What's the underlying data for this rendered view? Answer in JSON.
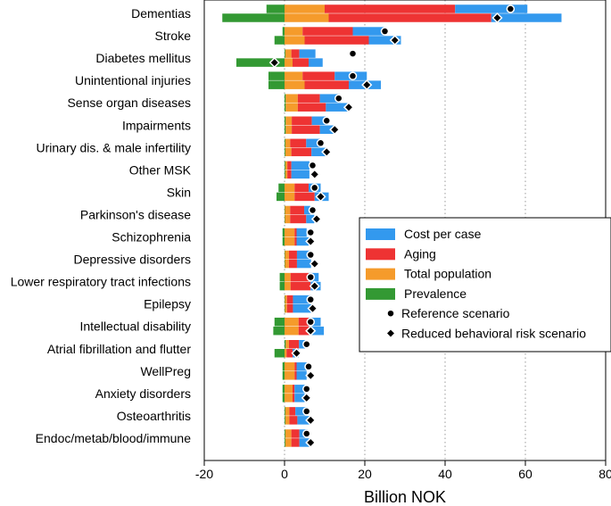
{
  "chart_data": {
    "type": "bar",
    "orientation": "horizontal",
    "stacked": true,
    "xlabel": "Billion NOK",
    "xlim": [
      -20,
      80
    ],
    "xticks": [
      -20,
      0,
      20,
      40,
      60,
      80
    ],
    "grid": "vertical-dotted",
    "legend_position": "right-center",
    "categories": [
      "Dementias",
      "Stroke",
      "Diabetes mellitus",
      "Unintentional injuries",
      "Sense organ diseases",
      "Impairments",
      "Urinary dis. & male infertility",
      "Other MSK",
      "Skin",
      "Parkinson's disease",
      "Schizophrenia",
      "Depressive disorders",
      "Lower respiratory tract infections",
      "Epilepsy",
      "Intellectual disability",
      "Atrial fibrillation and flutter",
      "WellPreg",
      "Anxiety disorders",
      "Osteoarthritis",
      "Endoc/metab/blood/immune"
    ],
    "legend": [
      {
        "key": "cost",
        "label": "Cost per case",
        "color": "#3399ee",
        "marker": "bar"
      },
      {
        "key": "aging",
        "label": "Aging",
        "color": "#ee3333",
        "marker": "bar"
      },
      {
        "key": "pop",
        "label": "Total population",
        "color": "#f59b2b",
        "marker": "bar"
      },
      {
        "key": "prev",
        "label": "Prevalence",
        "color": "#339933",
        "marker": "bar"
      },
      {
        "key": "ref",
        "label": "Reference scenario",
        "marker": "circle"
      },
      {
        "key": "red",
        "label": "Reduced behavioral risk scenario",
        "marker": "diamond"
      }
    ],
    "scenarios": {
      "reference": {
        "prevalence": [
          -4.5,
          -0.5,
          0.2,
          -4.0,
          0.3,
          0.3,
          0.2,
          0.2,
          -1.5,
          0.1,
          -0.5,
          0.1,
          -1.2,
          0.1,
          -2.5,
          0.3,
          -0.5,
          -0.5,
          0.2,
          0.2
        ],
        "total_population": [
          10.0,
          4.5,
          1.5,
          4.5,
          3.0,
          1.5,
          1.2,
          0.5,
          2.5,
          1.3,
          2.5,
          1.0,
          1.5,
          0.5,
          3.5,
          0.8,
          2.5,
          2.0,
          1.0,
          1.5
        ],
        "aging": [
          32.5,
          12.5,
          2.0,
          8.0,
          5.5,
          5.0,
          4.0,
          1.0,
          3.5,
          3.5,
          0.5,
          2.0,
          4.5,
          1.5,
          2.5,
          2.5,
          0.5,
          0.5,
          1.5,
          2.0
        ],
        "cost_per_case": [
          18.0,
          8.0,
          4.0,
          8.0,
          5.0,
          4.0,
          3.5,
          4.5,
          3.0,
          1.5,
          2.5,
          3.5,
          2.5,
          4.5,
          3.0,
          1.5,
          2.5,
          2.5,
          3.0,
          2.0
        ],
        "total": [
          56.3,
          25.0,
          17.0,
          17.0,
          13.5,
          10.5,
          9.0,
          7.0,
          7.5,
          7.0,
          6.5,
          6.5,
          6.5,
          6.5,
          6.5,
          5.5,
          6.0,
          5.5,
          5.5,
          5.5
        ]
      },
      "reduced_behavioral_risk": {
        "prevalence": [
          -15.5,
          -2.5,
          -12.0,
          -4.0,
          0.3,
          0.3,
          0.2,
          0.2,
          -2.0,
          0.1,
          -0.5,
          0.1,
          -1.2,
          0.1,
          -2.8,
          -2.5,
          -0.5,
          -0.5,
          0.2,
          0.2
        ],
        "total_population": [
          11.0,
          5.0,
          2.0,
          5.0,
          3.0,
          1.5,
          1.5,
          0.5,
          2.5,
          1.3,
          2.5,
          1.0,
          1.5,
          0.5,
          3.5,
          0.5,
          2.5,
          2.0,
          1.0,
          1.5
        ],
        "aging": [
          40.5,
          16.0,
          4.0,
          11.0,
          7.0,
          7.0,
          5.0,
          1.0,
          5.0,
          4.0,
          0.5,
          2.0,
          5.0,
          1.5,
          2.8,
          1.5,
          0.5,
          0.5,
          2.0,
          2.0
        ],
        "cost_per_case": [
          17.5,
          8.0,
          3.5,
          8.0,
          6.0,
          4.0,
          4.0,
          4.5,
          3.5,
          2.0,
          3.0,
          3.5,
          2.5,
          4.5,
          3.5,
          1.5,
          2.5,
          2.5,
          3.5,
          2.5
        ],
        "total": [
          53.0,
          27.5,
          -2.5,
          20.5,
          16.0,
          12.5,
          10.5,
          7.5,
          9.0,
          8.0,
          6.5,
          7.5,
          7.5,
          7.0,
          6.5,
          3.0,
          6.5,
          5.5,
          6.5,
          6.5
        ]
      }
    }
  }
}
